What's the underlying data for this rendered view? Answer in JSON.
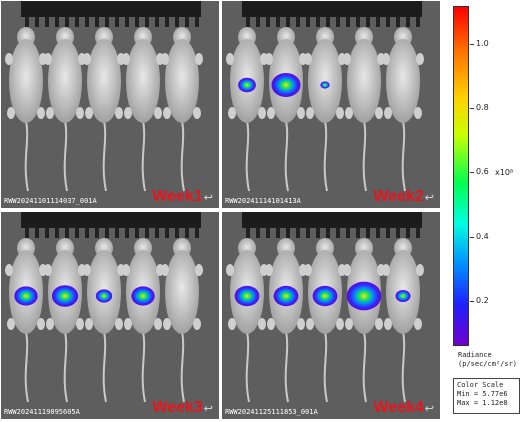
{
  "panels": [
    {
      "file_id": "RWW20241101114037_001A",
      "week": "Week1",
      "arrow": "↩",
      "signal": [
        0,
        0,
        0,
        0,
        0
      ]
    },
    {
      "file_id": "RWW20241114101413A",
      "week": "Week2",
      "arrow": "↩",
      "signal": [
        0.35,
        0.75,
        0.05,
        0,
        0
      ]
    },
    {
      "file_id": "RWW20241119095605A",
      "week": "Week3",
      "arrow": "↩",
      "signal": [
        0.55,
        0.65,
        0.3,
        0.55,
        0
      ]
    },
    {
      "file_id": "RWW20241125111853_001A",
      "week": "Week4",
      "arrow": "↩",
      "signal": [
        0.6,
        0.6,
        0.6,
        0.95,
        0.25
      ]
    }
  ],
  "colorbar": {
    "ticks": [
      "1.0",
      "0.8",
      "0.6",
      "0.4",
      "0.2"
    ],
    "exponent": "x10⁸",
    "label_line1": "Radiance",
    "label_line2": "(p/sec/cm²/sr)"
  },
  "color_scale": {
    "title": "Color Scale",
    "min": "Min = 5.77e6",
    "max": "Max = 1.12e8"
  }
}
